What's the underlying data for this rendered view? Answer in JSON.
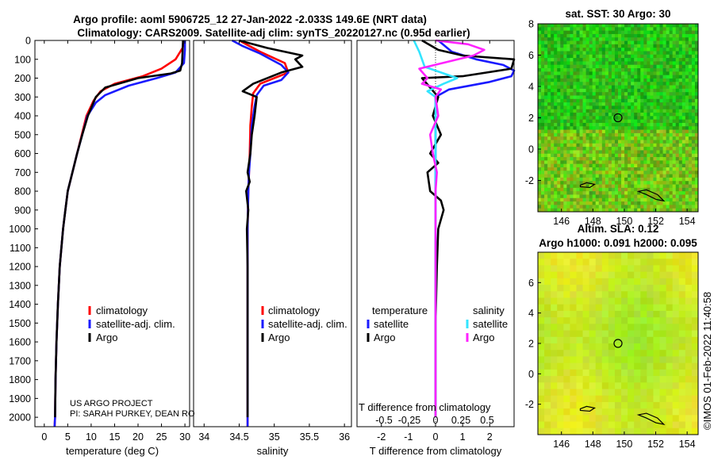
{
  "header": {
    "title_line1": "Argo profile: aoml 5906725_12 27-Jan-2022 -2.033S 149.6E (NRT data)",
    "title_line2": "Climatology: CARS2009. Satellite-adj clim: synTS_20220127.nc (0.95d earlier)"
  },
  "colors": {
    "climatology": "#ff0000",
    "satellite_adj": "#1a1aff",
    "argo": "#000000",
    "sat_salinity": "#33e5ff",
    "argo_salinity": "#ff22ff"
  },
  "credit": {
    "line1": "US ARGO PROJECT",
    "line2": "PI: SARAH PURKEY, DEAN RO"
  },
  "legends": {
    "temp": [
      "climatology",
      "satellite-adj. clim.",
      "Argo"
    ],
    "sal": [
      "climatology",
      "satellite-adj. clim.",
      "Argo"
    ],
    "diff_temp_head": "temperature",
    "diff_sal_head": "salinity",
    "diff_temp": [
      "satellite",
      "Argo"
    ],
    "diff_sal": [
      "satellite",
      "Argo"
    ]
  },
  "inset_label": "T difference from climatology",
  "inset_ticks": [
    "-0.5",
    "-0.25",
    "0",
    "0.25",
    "0.5"
  ],
  "watermark": "©IMOS 01-Feb-2022 11:40:58",
  "chart_data": [
    {
      "type": "line",
      "id": "temperature",
      "xlabel": "temperature (deg C)",
      "ylabel": "",
      "xlim": [
        -2,
        31
      ],
      "ylim": [
        2050,
        0
      ],
      "x_ticks": [
        0,
        5,
        10,
        15,
        20,
        25,
        30
      ],
      "y_ticks": [
        0,
        100,
        200,
        300,
        400,
        500,
        600,
        700,
        800,
        900,
        1000,
        1100,
        1200,
        1300,
        1400,
        1500,
        1600,
        1700,
        1800,
        1900,
        2000
      ],
      "series": [
        {
          "name": "climatology",
          "color": "#ff0000",
          "x": [
            30,
            29.5,
            28,
            25,
            21,
            15,
            12,
            10.5,
            9,
            8,
            7,
            6,
            5,
            4.5,
            4,
            3.3,
            2.9,
            2.6,
            2.4,
            2.3,
            2.2
          ],
          "y": [
            0,
            40,
            100,
            150,
            190,
            230,
            270,
            320,
            400,
            500,
            600,
            700,
            800,
            900,
            1000,
            1200,
            1400,
            1600,
            1800,
            2000,
            2050
          ]
        },
        {
          "name": "satellite-adj. clim.",
          "color": "#1a1aff",
          "x": [
            30,
            30,
            29.8,
            28,
            24,
            18,
            13,
            11,
            9.2,
            8.1,
            7,
            6,
            5,
            4.5,
            4,
            3.3,
            2.9,
            2.6,
            2.4,
            2.3,
            2.2
          ],
          "y": [
            0,
            50,
            120,
            170,
            200,
            240,
            290,
            330,
            400,
            500,
            600,
            700,
            800,
            900,
            1000,
            1200,
            1400,
            1600,
            1800,
            2000,
            2050
          ]
        },
        {
          "name": "Argo",
          "color": "#000000",
          "x": [
            29.6,
            29.5,
            29.4,
            29,
            27,
            20,
            13,
            11,
            9.3,
            8.1,
            7,
            6,
            5,
            4.5,
            4,
            3.3,
            2.9,
            2.6,
            2.4,
            2.3
          ],
          "y": [
            0,
            60,
            120,
            160,
            175,
            200,
            250,
            300,
            400,
            500,
            600,
            700,
            800,
            900,
            1000,
            1200,
            1400,
            1600,
            1800,
            2000
          ]
        }
      ]
    },
    {
      "type": "line",
      "id": "salinity",
      "xlabel": "salinity",
      "ylabel": "",
      "xlim": [
        33.85,
        36.1
      ],
      "ylim": [
        2050,
        0
      ],
      "x_ticks": [
        34,
        34.5,
        35,
        35.5,
        36
      ],
      "series": [
        {
          "name": "climatology",
          "color": "#ff0000",
          "x": [
            34.5,
            34.6,
            34.8,
            35.15,
            35.2,
            35.0,
            34.8,
            34.7,
            34.68,
            34.66,
            34.65,
            34.64,
            34.63,
            34.62,
            34.62,
            34.62,
            34.62,
            34.62,
            34.62,
            34.62
          ],
          "y": [
            0,
            20,
            60,
            120,
            170,
            200,
            230,
            280,
            350,
            450,
            600,
            700,
            800,
            1000,
            1200,
            1400,
            1600,
            1800,
            2000,
            2050
          ]
        },
        {
          "name": "satellite-adj. clim.",
          "color": "#1a1aff",
          "x": [
            34.4,
            34.55,
            34.8,
            35.1,
            35.2,
            35.1,
            34.85,
            34.75,
            34.72,
            34.68,
            34.66,
            34.64,
            34.63,
            34.62,
            34.62,
            34.62,
            34.62,
            34.62,
            34.62,
            34.62
          ],
          "y": [
            0,
            30,
            70,
            130,
            170,
            210,
            240,
            290,
            350,
            450,
            600,
            700,
            800,
            1000,
            1200,
            1400,
            1600,
            1800,
            2000,
            2050
          ]
        },
        {
          "name": "Argo",
          "color": "#000000",
          "x": [
            34.5,
            34.9,
            35.4,
            35.3,
            35.4,
            35.1,
            34.7,
            34.55,
            34.75,
            34.72,
            34.68,
            34.66,
            34.62,
            34.65,
            34.6,
            34.63,
            34.61,
            34.62,
            34.62,
            34.62
          ],
          "y": [
            0,
            40,
            80,
            100,
            140,
            170,
            230,
            270,
            300,
            400,
            500,
            600,
            700,
            750,
            800,
            900,
            1000,
            1200,
            1600,
            2000
          ]
        }
      ]
    },
    {
      "type": "line",
      "id": "difference",
      "xlabel": "T difference from climatology",
      "ylabel": "",
      "xlim": [
        -2.9,
        2.9
      ],
      "ylim": [
        2050,
        0
      ],
      "x_ticks": [
        -2,
        -1,
        0,
        1,
        2
      ],
      "series": [
        {
          "name": "satellite (temperature)",
          "color": "#1a1aff",
          "x": [
            0.1,
            0.6,
            1.5,
            2.5,
            2.9,
            2.8,
            2.0,
            0.5,
            0,
            0,
            0,
            0,
            0,
            0
          ],
          "y": [
            0,
            60,
            100,
            130,
            160,
            190,
            220,
            260,
            300,
            400,
            600,
            1000,
            1500,
            2000
          ]
        },
        {
          "name": "Argo (temperature)",
          "color": "#000000",
          "x": [
            -0.5,
            0.1,
            1.0,
            2.9,
            2.8,
            1.0,
            -0.5,
            -0.2,
            0.1,
            -0.1,
            0.2,
            -0.2,
            0.1,
            -0.3,
            -0.2,
            0.2,
            0.3,
            0.1,
            0.05,
            0,
            0
          ],
          "y": [
            0,
            50,
            80,
            100,
            150,
            190,
            200,
            250,
            300,
            400,
            500,
            600,
            650,
            700,
            800,
            850,
            900,
            1000,
            1200,
            1500,
            2000
          ]
        },
        {
          "name": "satellite (salinity)",
          "color": "#33e5ff",
          "x": [
            -0.8,
            -0.6,
            -0.5,
            -0.4,
            0.2,
            0.8,
            0.3,
            -0.3,
            0,
            0,
            0,
            0,
            0,
            0
          ],
          "y": [
            0,
            60,
            100,
            140,
            170,
            200,
            230,
            270,
            300,
            400,
            600,
            1000,
            1500,
            2000
          ]
        },
        {
          "name": "Argo (salinity)",
          "color": "#ff22ff",
          "x": [
            0,
            1.2,
            1.8,
            1.4,
            -0.6,
            -0.3,
            -0.5,
            0.2,
            0.0,
            0.1,
            -0.2,
            -0.1,
            0.05,
            0,
            0,
            0
          ],
          "y": [
            0,
            20,
            50,
            80,
            150,
            200,
            230,
            260,
            300,
            400,
            500,
            600,
            700,
            800,
            1200,
            2000
          ]
        }
      ]
    },
    {
      "type": "heatmap",
      "id": "sst_map",
      "title": "sat. SST: 30 Argo: 30",
      "x_ticks": [
        146,
        148,
        150,
        152,
        154
      ],
      "y_ticks": [
        8,
        6,
        4,
        2,
        0,
        -2
      ],
      "xlim": [
        144.5,
        154.7
      ],
      "ylim": [
        -4,
        8
      ],
      "argo_position": [
        149.6,
        2.0
      ]
    },
    {
      "type": "heatmap",
      "id": "sla_map",
      "title_line1": "Altim. SLA: 0.12",
      "title_line2": "Argo h1000: 0.091 h2000: 0.095",
      "x_ticks": [
        146,
        148,
        150,
        152,
        154
      ],
      "y_ticks": [
        6,
        4,
        2,
        0,
        -2
      ],
      "xlim": [
        144.5,
        154.7
      ],
      "ylim": [
        -4,
        8
      ],
      "argo_position": [
        149.6,
        2.0
      ]
    }
  ]
}
